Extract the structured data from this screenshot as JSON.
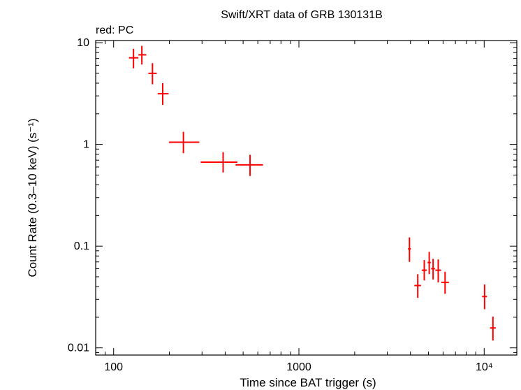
{
  "chart_data": {
    "type": "scatter",
    "title": "Swift/XRT data of GRB 130131B",
    "subtitle": "red: PC",
    "xlabel": "Time since BAT trigger (s)",
    "ylabel": "Count Rate (0.3–10 keV) (s⁻¹)",
    "xscale": "log",
    "yscale": "log",
    "xlim": [
      80,
      15000
    ],
    "ylim": [
      0.0085,
      10.5
    ],
    "grid": false,
    "x_ticks": [
      {
        "value": 100,
        "label": "100"
      },
      {
        "value": 1000,
        "label": "1000"
      },
      {
        "value": 10000,
        "label": "10⁴"
      }
    ],
    "y_ticks": [
      {
        "value": 0.01,
        "label": "0.01"
      },
      {
        "value": 0.1,
        "label": "0.1"
      },
      {
        "value": 1,
        "label": "1"
      },
      {
        "value": 10,
        "label": "10"
      }
    ],
    "series": [
      {
        "name": "PC",
        "color": "#ff0000",
        "points": [
          {
            "x": 128,
            "xlo": 121,
            "xhi": 136,
            "y": 7.1,
            "ylo": 5.6,
            "yhi": 8.7
          },
          {
            "x": 142,
            "xlo": 136,
            "xhi": 150,
            "y": 7.6,
            "ylo": 6.1,
            "yhi": 9.3
          },
          {
            "x": 162,
            "xlo": 154,
            "xhi": 171,
            "y": 5.0,
            "ylo": 3.9,
            "yhi": 6.3
          },
          {
            "x": 184,
            "xlo": 173,
            "xhi": 198,
            "y": 3.15,
            "ylo": 2.45,
            "yhi": 4.0
          },
          {
            "x": 238,
            "xlo": 199,
            "xhi": 290,
            "y": 1.05,
            "ylo": 0.82,
            "yhi": 1.33
          },
          {
            "x": 390,
            "xlo": 295,
            "xhi": 465,
            "y": 0.67,
            "ylo": 0.53,
            "yhi": 0.84
          },
          {
            "x": 545,
            "xlo": 455,
            "xhi": 640,
            "y": 0.63,
            "ylo": 0.49,
            "yhi": 0.79
          },
          {
            "x": 3950,
            "xlo": 3880,
            "xhi": 4020,
            "y": 0.094,
            "ylo": 0.07,
            "yhi": 0.122
          },
          {
            "x": 4380,
            "xlo": 4200,
            "xhi": 4560,
            "y": 0.041,
            "ylo": 0.031,
            "yhi": 0.053
          },
          {
            "x": 4750,
            "xlo": 4600,
            "xhi": 4900,
            "y": 0.058,
            "ylo": 0.046,
            "yhi": 0.073
          },
          {
            "x": 5050,
            "xlo": 4950,
            "xhi": 5150,
            "y": 0.069,
            "ylo": 0.053,
            "yhi": 0.088
          },
          {
            "x": 5300,
            "xlo": 5170,
            "xhi": 5430,
            "y": 0.06,
            "ylo": 0.047,
            "yhi": 0.075
          },
          {
            "x": 5650,
            "xlo": 5450,
            "xhi": 5860,
            "y": 0.058,
            "ylo": 0.044,
            "yhi": 0.074
          },
          {
            "x": 6150,
            "xlo": 5870,
            "xhi": 6450,
            "y": 0.044,
            "ylo": 0.034,
            "yhi": 0.056
          },
          {
            "x": 10050,
            "xlo": 9750,
            "xhi": 10350,
            "y": 0.032,
            "ylo": 0.024,
            "yhi": 0.042
          },
          {
            "x": 11150,
            "xlo": 10750,
            "xhi": 11550,
            "y": 0.0157,
            "ylo": 0.0118,
            "yhi": 0.0203
          }
        ]
      }
    ]
  }
}
